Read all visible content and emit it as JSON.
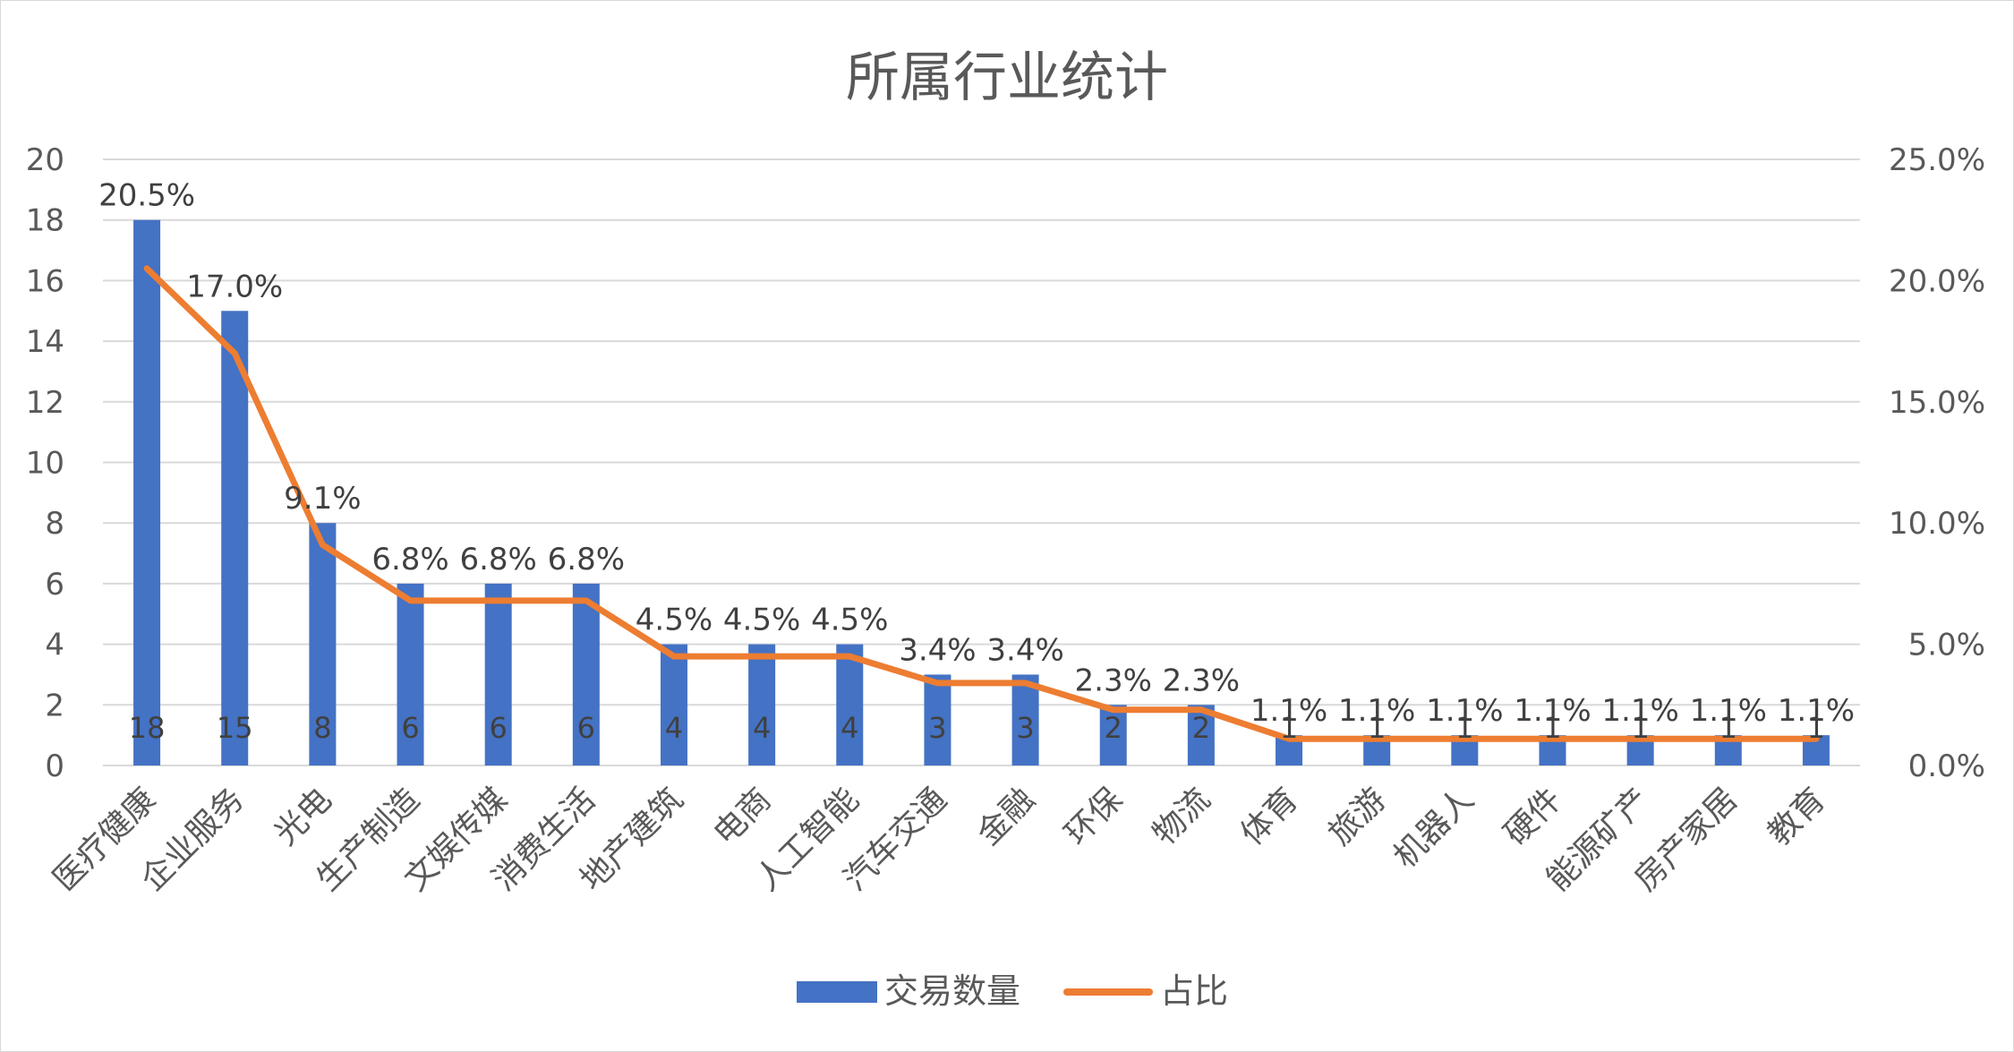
{
  "chart_data": {
    "type": "bar",
    "title": "所属行业统计",
    "categories": [
      "医疗健康",
      "企业服务",
      "光电",
      "生产制造",
      "文娱传媒",
      "消费生活",
      "地产建筑",
      "电商",
      "人工智能",
      "汽车交通",
      "金融",
      "环保",
      "物流",
      "体育",
      "旅游",
      "机器人",
      "硬件",
      "能源矿产",
      "房产家居",
      "教育"
    ],
    "series": [
      {
        "name": "交易数量",
        "type": "bar",
        "axis": "left",
        "color": "#4472C4",
        "values": [
          18,
          15,
          8,
          6,
          6,
          6,
          4,
          4,
          4,
          3,
          3,
          2,
          2,
          1,
          1,
          1,
          1,
          1,
          1,
          1
        ]
      },
      {
        "name": "占比",
        "type": "line",
        "axis": "right",
        "color": "#ED7D31",
        "values": [
          20.5,
          17.0,
          9.1,
          6.8,
          6.8,
          6.8,
          4.5,
          4.5,
          4.5,
          3.4,
          3.4,
          2.3,
          2.3,
          1.1,
          1.1,
          1.1,
          1.1,
          1.1,
          1.1,
          1.1
        ],
        "labels": [
          "20.5%",
          "17.0%",
          "9.1%",
          "6.8%",
          "6.8%",
          "6.8%",
          "4.5%",
          "4.5%",
          "4.5%",
          "3.4%",
          "3.4%",
          "2.3%",
          "2.3%",
          "1.1%",
          "1.1%",
          "1.1%",
          "1.1%",
          "1.1%",
          "1.1%",
          "1.1%"
        ]
      }
    ],
    "y_left": {
      "ylim": [
        0,
        20
      ],
      "ticks": [
        "0",
        "2",
        "4",
        "6",
        "8",
        "10",
        "12",
        "14",
        "16",
        "18",
        "20"
      ]
    },
    "y_right": {
      "ylim": [
        0,
        25
      ],
      "ticks": [
        "0.0%",
        "5.0%",
        "10.0%",
        "15.0%",
        "20.0%",
        "25.0%"
      ]
    },
    "grid": true,
    "legend": "bottom"
  }
}
